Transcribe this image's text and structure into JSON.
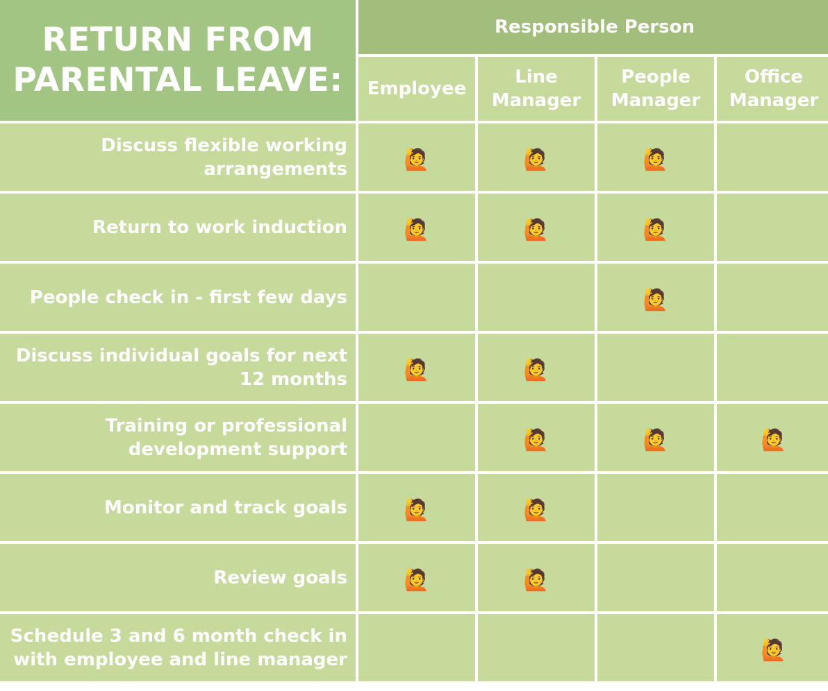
{
  "title": "RETURN FROM PARENTAL LEAVE:",
  "responsible_header": "Responsible Person",
  "marker_glyph": "🙋",
  "marker_icon": "person-raising-hand-icon",
  "colors": {
    "cell": "#c6da9c",
    "title_bg": "#a3c584",
    "header_bg": "#a3bd7d",
    "text": "#ffffff"
  },
  "columns": [
    "Employee",
    "Line Manager",
    "People Manager",
    "Office Manager"
  ],
  "rows": [
    {
      "task": "Discuss flexible working arrangements",
      "marks": [
        true,
        true,
        true,
        false
      ]
    },
    {
      "task": "Return to work induction",
      "marks": [
        true,
        true,
        true,
        false
      ]
    },
    {
      "task": "People check in - first few days",
      "marks": [
        false,
        false,
        true,
        false
      ]
    },
    {
      "task": "Discuss individual goals for next 12 months",
      "marks": [
        true,
        true,
        false,
        false
      ]
    },
    {
      "task": "Training or professional development support",
      "marks": [
        false,
        true,
        true,
        true
      ]
    },
    {
      "task": "Monitor and track goals",
      "marks": [
        true,
        true,
        false,
        false
      ]
    },
    {
      "task": "Review goals",
      "marks": [
        true,
        true,
        false,
        false
      ]
    },
    {
      "task": "Schedule 3 and 6 month check in with employee and line manager",
      "marks": [
        false,
        false,
        false,
        true
      ]
    }
  ]
}
